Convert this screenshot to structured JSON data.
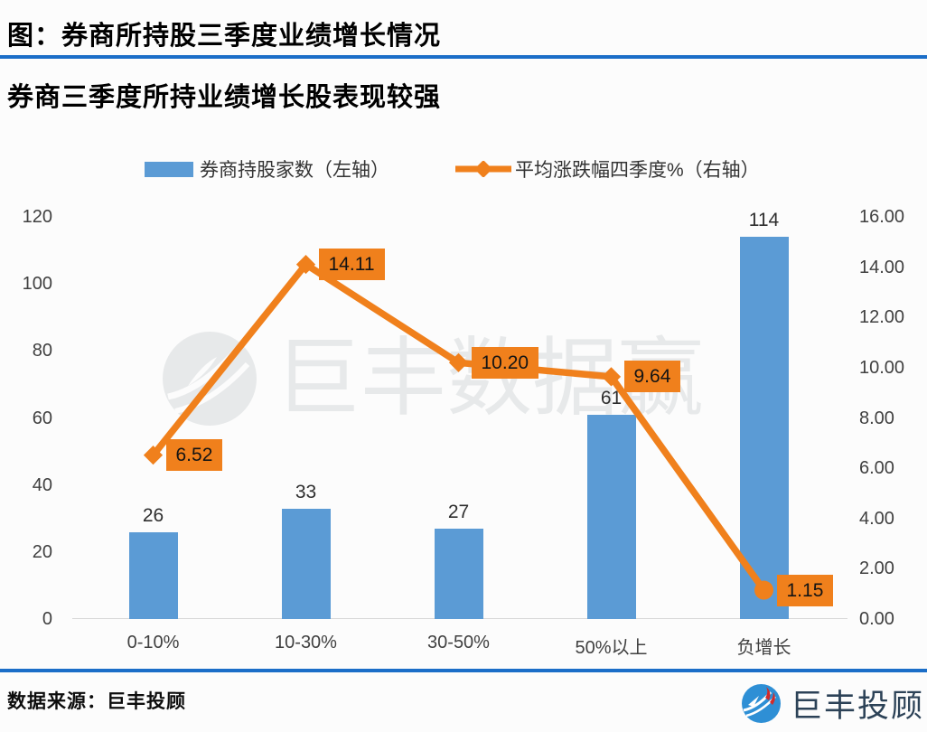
{
  "header": {
    "title": "图：券商所持股三季度业绩增长情况",
    "subtitle": "券商三季度所持业绩增长股表现较强"
  },
  "legend": {
    "bar_label": "券商持股家数（左轴）",
    "line_label": "平均涨跌幅四季度%（右轴）"
  },
  "colors": {
    "bar": "#5b9bd5",
    "line": "#f0801c",
    "label_box": "#f0801c",
    "divider": "#1b6ec8",
    "axis_text": "#404040",
    "baseline": "#d8d8d8"
  },
  "chart_data": {
    "type": "bar",
    "subtype": "combo bar+line, dual axis",
    "categories": [
      "0-10%",
      "10-30%",
      "30-50%",
      "50%以上",
      "负增长"
    ],
    "series": [
      {
        "name": "券商持股家数（左轴）",
        "type": "bar",
        "axis": "left",
        "values": [
          26,
          33,
          27,
          61,
          114
        ],
        "labels": [
          "26",
          "33",
          "27",
          "61",
          "114"
        ],
        "color": "#5b9bd5"
      },
      {
        "name": "平均涨跌幅四季度%（右轴）",
        "type": "line",
        "axis": "right",
        "values": [
          6.52,
          14.11,
          10.2,
          9.64,
          1.15
        ],
        "labels": [
          "6.52",
          "14.11",
          "10.20",
          "9.64",
          "1.15"
        ],
        "markers": [
          "diamond",
          "diamond",
          "diamond",
          "diamond",
          "circle"
        ],
        "color": "#f0801c"
      }
    ],
    "left_axis": {
      "min": 0,
      "max": 120,
      "ticks": [
        "120",
        "100",
        "80",
        "60",
        "40",
        "20",
        "0"
      ]
    },
    "right_axis": {
      "min": 0,
      "max": 16,
      "ticks": [
        "16.00",
        "14.00",
        "12.00",
        "10.00",
        "8.00",
        "6.00",
        "4.00",
        "2.00",
        "0.00"
      ]
    },
    "grid": "off",
    "legend_position": "top"
  },
  "watermark": {
    "text": "巨丰数据赢"
  },
  "footer": {
    "source": "数据来源：巨丰投顾",
    "brand": "巨丰投顾"
  }
}
